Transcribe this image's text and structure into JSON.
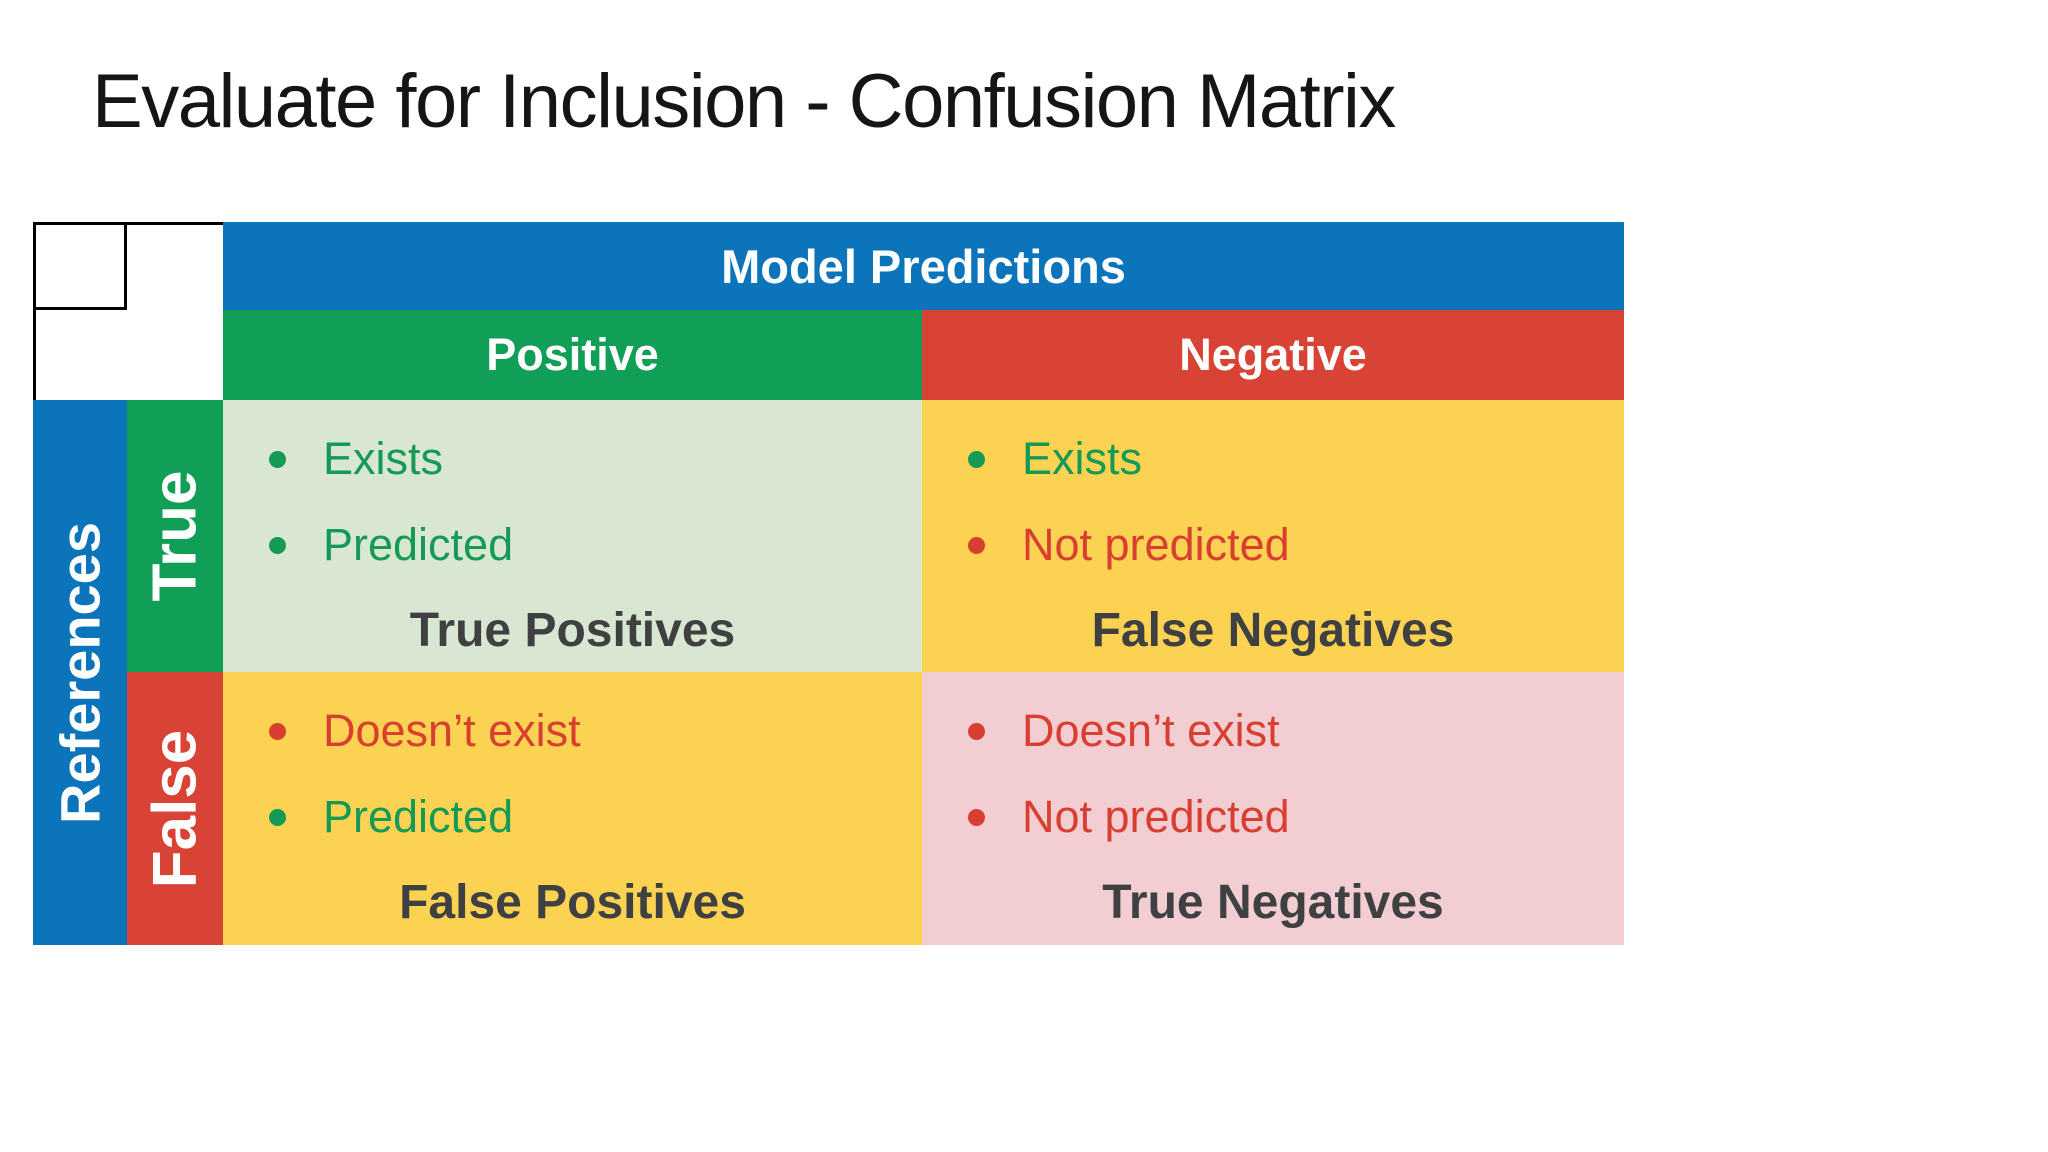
{
  "slide": {
    "title": "Evaluate for Inclusion - Confusion Matrix",
    "background": "#ffffff"
  },
  "matrix": {
    "column_group": {
      "label": "Model Predictions",
      "bg": "#0b74bb",
      "text_color": "#ffffff"
    },
    "row_group": {
      "label": "References",
      "bg": "#0b74bb",
      "text_color": "#ffffff"
    },
    "col_headers": [
      {
        "label": "Positive",
        "bg": "#119e56"
      },
      {
        "label": "Negative",
        "bg": "#d94335"
      }
    ],
    "row_headers": [
      {
        "label": "True",
        "bg": "#119e56"
      },
      {
        "label": "False",
        "bg": "#d94335"
      }
    ],
    "cells": {
      "true_positives": {
        "bg": "#d9e7d2",
        "label": "True Positives",
        "bullets": [
          {
            "text": "Exists",
            "color": "#149a55"
          },
          {
            "text": "Predicted",
            "color": "#149a55"
          }
        ]
      },
      "false_negatives": {
        "bg": "#fcd252",
        "label": "False Negatives",
        "bullets": [
          {
            "text": "Exists",
            "color": "#149a55"
          },
          {
            "text": "Not predicted",
            "color": "#d93f31"
          }
        ]
      },
      "false_positives": {
        "bg": "#fcd252",
        "label": "False Positives",
        "bullets": [
          {
            "text": "Doesn’t exist",
            "color": "#d93f31"
          },
          {
            "text": "Predicted",
            "color": "#149a55"
          }
        ]
      },
      "true_negatives": {
        "bg": "#f2ced2",
        "label": "True Negatives",
        "bullets": [
          {
            "text": "Doesn’t exist",
            "color": "#d93f31"
          },
          {
            "text": "Not predicted",
            "color": "#d93f31"
          }
        ]
      }
    },
    "label_text_color": "#3f4042",
    "corner_border_color": "#000000"
  }
}
